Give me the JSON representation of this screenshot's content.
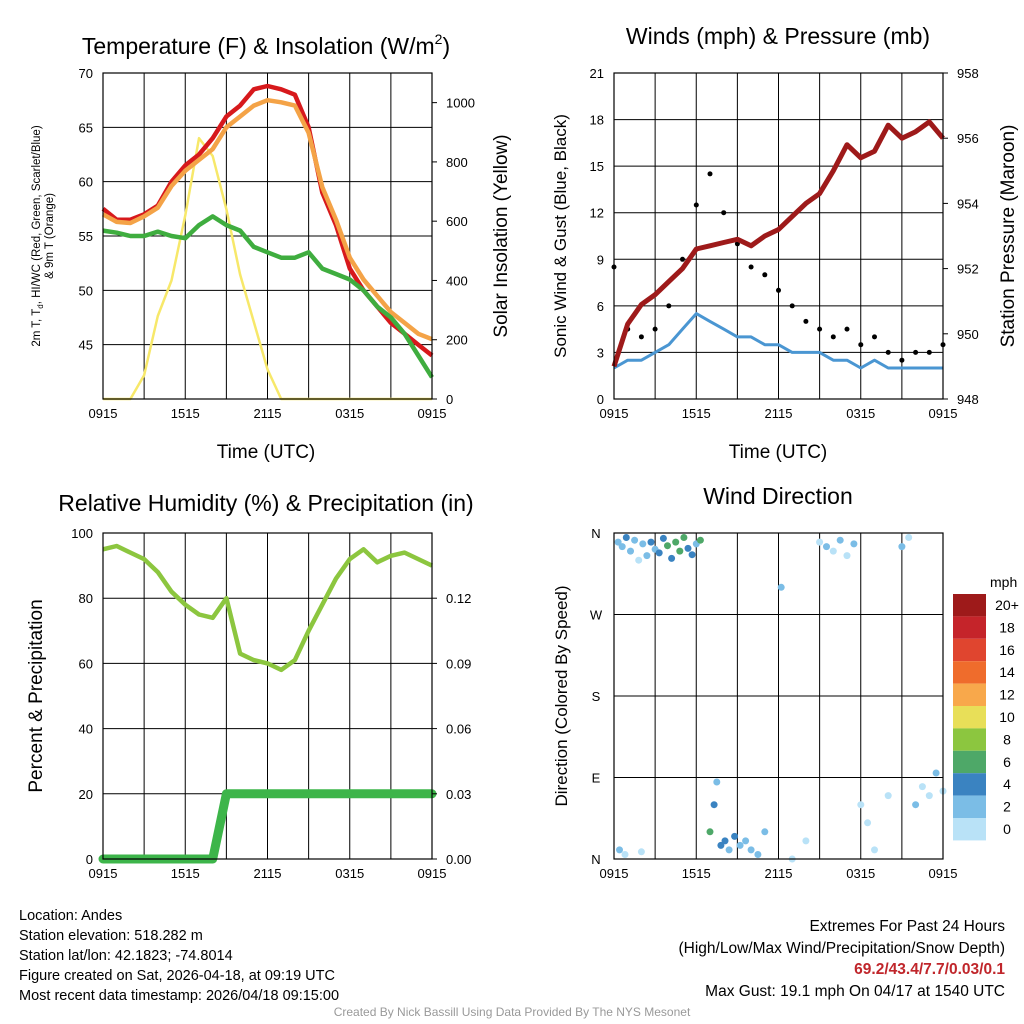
{
  "chart_data": [
    {
      "type": "line",
      "title": "Temperature (F) & Insolation (W/m²)",
      "title_main": "Temperature (F) & Insolation (W/m",
      "title_sup": "2",
      "title_end": ")",
      "xlabel": "Time (UTC)",
      "ylabel": "2m T, Td, HI/WC (Red, Green, Scarlet/Blue) & 9m T (Orange)",
      "ylabel_line1": "2m T, T",
      "ylabel_sub": "d",
      "ylabel_line1_end": ", HI/WC (Red, Green, Scarlet/Blue)",
      "ylabel_line2": "& 9m T (Orange)",
      "y2label": "Solar Insolation (Yellow)",
      "x_ticks": [
        "0915",
        "1515",
        "2115",
        "0315",
        "0915"
      ],
      "ylim": [
        40,
        70
      ],
      "y_ticks": [
        45,
        50,
        55,
        60,
        65,
        70
      ],
      "y2lim": [
        0,
        1100
      ],
      "y2_ticks": [
        0,
        200,
        400,
        600,
        800,
        1000
      ],
      "x_hours": [
        0,
        1,
        2,
        3,
        4,
        5,
        6,
        7,
        8,
        9,
        10,
        11,
        12,
        13,
        14,
        15,
        16,
        17,
        18,
        19,
        20,
        21,
        22,
        23,
        24
      ],
      "series": [
        {
          "name": "2m T",
          "color": "#d7191c",
          "values": [
            57.5,
            56.5,
            56.5,
            57.0,
            57.8,
            60.0,
            61.5,
            62.5,
            64.0,
            66.0,
            67.0,
            68.5,
            68.8,
            68.5,
            68.0,
            65.0,
            59.0,
            56.0,
            52.0,
            50.0,
            48.5,
            47.0,
            46.0,
            45.0,
            44.0
          ]
        },
        {
          "name": "9m T",
          "color": "#f4a347",
          "values": [
            57.0,
            56.3,
            56.2,
            56.8,
            57.6,
            59.6,
            61.0,
            62.0,
            63.0,
            65.0,
            66.0,
            67.0,
            67.5,
            67.3,
            67.0,
            64.5,
            59.5,
            56.5,
            53.0,
            51.0,
            49.5,
            48.0,
            47.0,
            46.0,
            45.5
          ]
        },
        {
          "name": "Td",
          "color": "#3fad3f",
          "values": [
            55.5,
            55.3,
            55.0,
            55.0,
            55.4,
            55.0,
            54.8,
            56.0,
            56.8,
            56.0,
            55.5,
            54.0,
            53.5,
            53.0,
            53.0,
            53.5,
            52.0,
            51.5,
            51.0,
            50.0,
            48.5,
            47.5,
            46.0,
            44.0,
            42.0
          ]
        },
        {
          "name": "Solar Insolation",
          "color": "#f7e86a",
          "axis": "y2",
          "values": [
            0,
            0,
            0,
            80,
            280,
            400,
            620,
            880,
            820,
            640,
            420,
            260,
            100,
            0,
            0,
            0,
            0,
            0,
            0,
            0,
            0,
            0,
            0,
            0,
            0
          ]
        }
      ]
    },
    {
      "type": "scatter",
      "title": "Winds (mph) & Pressure (mb)",
      "xlabel": "Time (UTC)",
      "ylabel": "Sonic Wind & Gust (Blue, Black)",
      "y2label": "Station Pressure (Maroon)",
      "x_ticks": [
        "0915",
        "1515",
        "2115",
        "0315",
        "0915"
      ],
      "ylim": [
        0,
        21
      ],
      "y_ticks": [
        0,
        3,
        6,
        9,
        12,
        15,
        18,
        21
      ],
      "y2lim": [
        948,
        958
      ],
      "y2_ticks": [
        948,
        950,
        952,
        954,
        956,
        958
      ],
      "x_hours": [
        0,
        1,
        2,
        3,
        4,
        5,
        6,
        7,
        8,
        9,
        10,
        11,
        12,
        13,
        14,
        15,
        16,
        17,
        18,
        19,
        20,
        21,
        22,
        23,
        24
      ],
      "series": [
        {
          "name": "Sonic Wind",
          "color": "#4a96d2",
          "values": [
            2.0,
            2.5,
            2.5,
            3.0,
            3.5,
            4.5,
            5.5,
            5.0,
            4.5,
            4.0,
            4.0,
            3.5,
            3.5,
            3.0,
            3.0,
            3.0,
            2.5,
            2.5,
            2.0,
            2.5,
            2.0,
            2.0,
            2.0,
            2.0,
            2.0
          ]
        },
        {
          "name": "Gust",
          "color": "#000000",
          "values": [
            8.5,
            4.5,
            4.0,
            4.5,
            6.0,
            9.0,
            12.5,
            14.5,
            12.0,
            10.0,
            8.5,
            8.0,
            7.0,
            6.0,
            5.0,
            4.5,
            4.0,
            4.5,
            3.5,
            4.0,
            3.0,
            2.5,
            3.0,
            3.0,
            3.5
          ]
        },
        {
          "name": "Station Pressure",
          "color": "#9e1a1a",
          "axis": "y2",
          "values": [
            949.0,
            950.3,
            950.9,
            951.2,
            951.6,
            952.0,
            952.6,
            952.7,
            952.8,
            952.9,
            952.7,
            953.0,
            953.2,
            953.6,
            954.0,
            954.3,
            955.0,
            955.8,
            955.4,
            955.6,
            956.4,
            956.0,
            956.2,
            956.5,
            956.0
          ]
        }
      ]
    },
    {
      "type": "line",
      "title": "Relative Humidity (%) & Precipitation (in)",
      "xlabel": "",
      "ylabel": "Percent & Precipitation",
      "x_ticks": [
        "0915",
        "1515",
        "2115",
        "0315",
        "0915"
      ],
      "ylim": [
        0,
        100
      ],
      "y_ticks": [
        0,
        20,
        40,
        60,
        80,
        100
      ],
      "y2lim": [
        0,
        0.15
      ],
      "y2_ticks": [
        "0.00",
        "0.03",
        "0.06",
        "0.09",
        "0.12"
      ],
      "x_hours": [
        0,
        1,
        2,
        3,
        4,
        5,
        6,
        7,
        8,
        9,
        10,
        11,
        12,
        13,
        14,
        15,
        16,
        17,
        18,
        19,
        20,
        21,
        22,
        23,
        24
      ],
      "series": [
        {
          "name": "Relative Humidity",
          "color": "#8cc63f",
          "values": [
            95,
            96,
            94,
            92,
            88,
            82,
            78,
            75,
            74,
            80,
            63,
            61,
            60,
            58,
            61,
            70,
            78,
            86,
            92,
            95,
            91,
            93,
            94,
            92,
            90
          ]
        },
        {
          "name": "Precipitation",
          "color": "#3db54a",
          "axis": "y2",
          "values": [
            0,
            0,
            0,
            0,
            0,
            0,
            0,
            0,
            0,
            0.03,
            0.03,
            0.03,
            0.03,
            0.03,
            0.03,
            0.03,
            0.03,
            0.03,
            0.03,
            0.03,
            0.03,
            0.03,
            0.03,
            0.03,
            0.03
          ]
        }
      ]
    },
    {
      "type": "scatter",
      "title": "Wind Direction",
      "xlabel": "",
      "ylabel": "Direction (Colored By Speed)",
      "x_ticks": [
        "0915",
        "1515",
        "2115",
        "0315",
        "0915"
      ],
      "y_ticks": [
        "N",
        "E",
        "S",
        "W",
        "N"
      ],
      "ylim": [
        0,
        360
      ],
      "legend_title": "mph",
      "legend_labels": [
        "20+",
        "18",
        "16",
        "14",
        "12",
        "10",
        "8",
        "6",
        "4",
        "2",
        "0"
      ],
      "legend_colors": [
        "#9e1a1a",
        "#c5242a",
        "#e0452f",
        "#ef6c2c",
        "#f8a84b",
        "#e8df58",
        "#8cc63f",
        "#4ea868",
        "#3a83c1",
        "#7bbde6",
        "#b9e2f7"
      ],
      "points": [
        {
          "h": 0.3,
          "dir": 350,
          "spd": 3
        },
        {
          "h": 0.6,
          "dir": 345,
          "spd": 2
        },
        {
          "h": 0.9,
          "dir": 355,
          "spd": 4
        },
        {
          "h": 1.2,
          "dir": 340,
          "spd": 2
        },
        {
          "h": 1.5,
          "dir": 352,
          "spd": 3
        },
        {
          "h": 1.8,
          "dir": 330,
          "spd": 1
        },
        {
          "h": 2.1,
          "dir": 348,
          "spd": 2
        },
        {
          "h": 2.4,
          "dir": 335,
          "spd": 3
        },
        {
          "h": 2.7,
          "dir": 350,
          "spd": 4
        },
        {
          "h": 3.0,
          "dir": 342,
          "spd": 3
        },
        {
          "h": 3.3,
          "dir": 338,
          "spd": 4
        },
        {
          "h": 3.6,
          "dir": 354,
          "spd": 5
        },
        {
          "h": 3.9,
          "dir": 346,
          "spd": 6
        },
        {
          "h": 4.2,
          "dir": 332,
          "spd": 5
        },
        {
          "h": 4.5,
          "dir": 350,
          "spd": 7
        },
        {
          "h": 4.8,
          "dir": 340,
          "spd": 6
        },
        {
          "h": 5.1,
          "dir": 355,
          "spd": 7
        },
        {
          "h": 5.4,
          "dir": 343,
          "spd": 5
        },
        {
          "h": 5.7,
          "dir": 336,
          "spd": 4
        },
        {
          "h": 6.0,
          "dir": 348,
          "spd": 3
        },
        {
          "h": 6.3,
          "dir": 352,
          "spd": 6
        },
        {
          "h": 0.4,
          "dir": 10,
          "spd": 2
        },
        {
          "h": 0.8,
          "dir": 5,
          "spd": 1
        },
        {
          "h": 2.0,
          "dir": 8,
          "spd": 1
        },
        {
          "h": 7.0,
          "dir": 30,
          "spd": 6
        },
        {
          "h": 7.3,
          "dir": 60,
          "spd": 4
        },
        {
          "h": 7.5,
          "dir": 85,
          "spd": 3
        },
        {
          "h": 7.8,
          "dir": 15,
          "spd": 5
        },
        {
          "h": 8.1,
          "dir": 20,
          "spd": 4
        },
        {
          "h": 8.4,
          "dir": 10,
          "spd": 3
        },
        {
          "h": 8.8,
          "dir": 25,
          "spd": 4
        },
        {
          "h": 9.2,
          "dir": 15,
          "spd": 3
        },
        {
          "h": 9.6,
          "dir": 20,
          "spd": 2
        },
        {
          "h": 10.0,
          "dir": 10,
          "spd": 3
        },
        {
          "h": 10.5,
          "dir": 5,
          "spd": 2
        },
        {
          "h": 11.0,
          "dir": 30,
          "spd": 2
        },
        {
          "h": 12.2,
          "dir": 300,
          "spd": 3
        },
        {
          "h": 13.0,
          "dir": 0,
          "spd": 1
        },
        {
          "h": 14.0,
          "dir": 20,
          "spd": 1
        },
        {
          "h": 15.0,
          "dir": 350,
          "spd": 1
        },
        {
          "h": 15.5,
          "dir": 345,
          "spd": 2
        },
        {
          "h": 16.0,
          "dir": 340,
          "spd": 1
        },
        {
          "h": 16.5,
          "dir": 352,
          "spd": 2
        },
        {
          "h": 17.0,
          "dir": 335,
          "spd": 1
        },
        {
          "h": 17.5,
          "dir": 348,
          "spd": 2
        },
        {
          "h": 18.0,
          "dir": 60,
          "spd": 1
        },
        {
          "h": 18.5,
          "dir": 40,
          "spd": 1
        },
        {
          "h": 19.0,
          "dir": 10,
          "spd": 1
        },
        {
          "h": 20.0,
          "dir": 70,
          "spd": 1
        },
        {
          "h": 21.0,
          "dir": 345,
          "spd": 2
        },
        {
          "h": 21.5,
          "dir": 355,
          "spd": 1
        },
        {
          "h": 22.0,
          "dir": 60,
          "spd": 2
        },
        {
          "h": 22.5,
          "dir": 80,
          "spd": 1
        },
        {
          "h": 23.0,
          "dir": 70,
          "spd": 1
        },
        {
          "h": 23.5,
          "dir": 95,
          "spd": 2
        },
        {
          "h": 24.0,
          "dir": 75,
          "spd": 1
        }
      ]
    }
  ],
  "footer_left": [
    "Location: Andes",
    "Station elevation: 518.282 m",
    "Station lat/lon: 42.1823; -74.8014",
    "Figure created on Sat, 2026-04-18, at 09:19 UTC",
    "Most recent data timestamp: 2026/04/18 09:15:00"
  ],
  "extremes": {
    "heading": "Extremes For Past 24 Hours",
    "legend": "(High/Low/Max Wind/Precipitation/Snow Depth)",
    "values": "69.2/43.4/7.7/0.03/0.1",
    "max_gust": "Max Gust: 19.1 mph On 04/17 at 1540 UTC"
  },
  "credit": "Created By Nick Bassill Using Data Provided By The NYS Mesonet",
  "colors": {
    "grid": "#000000",
    "text": "#000000",
    "extremes": "#c0262b",
    "credit": "#999999"
  }
}
